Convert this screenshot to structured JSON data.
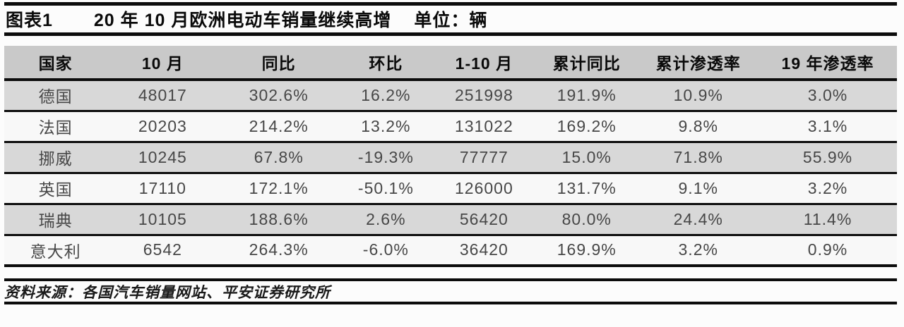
{
  "title": {
    "fig_label": "图表1",
    "text": "20 年 10 月欧洲电动车销量继续高增",
    "unit": "单位：辆"
  },
  "table": {
    "columns": [
      "国家",
      "10 月",
      "同比",
      "环比",
      "1-10 月",
      "累计同比",
      "累计渗透率",
      "19 年渗透率"
    ],
    "rows": [
      {
        "country": "德国",
        "values": [
          "48017",
          "302.6%",
          "16.2%",
          "251998",
          "191.9%",
          "10.9%",
          "3.0%"
        ]
      },
      {
        "country": "法国",
        "values": [
          "20203",
          "214.2%",
          "13.2%",
          "131022",
          "169.2%",
          "9.8%",
          "3.1%"
        ]
      },
      {
        "country": "挪威",
        "values": [
          "10245",
          "67.8%",
          "-19.3%",
          "77777",
          "15.0%",
          "71.8%",
          "55.9%"
        ]
      },
      {
        "country": "英国",
        "values": [
          "17110",
          "172.1%",
          "-50.1%",
          "126000",
          "131.7%",
          "9.1%",
          "3.2%"
        ]
      },
      {
        "country": "瑞典",
        "values": [
          "10105",
          "188.6%",
          "2.6%",
          "56420",
          "80.0%",
          "24.4%",
          "11.4%"
        ]
      },
      {
        "country": "意大利",
        "values": [
          "6542",
          "264.3%",
          "-6.0%",
          "36420",
          "169.9%",
          "3.2%",
          "0.9%"
        ]
      }
    ]
  },
  "footer": {
    "source": "资料来源：各国汽车销量网站、平安证券研究所"
  },
  "chart_data": {
    "type": "table",
    "title": "20 年 10 月欧洲电动车销量继续高增",
    "unit": "辆",
    "columns": [
      "国家",
      "10 月",
      "同比",
      "环比",
      "1-10 月",
      "累计同比",
      "累计渗透率",
      "19 年渗透率"
    ],
    "rows": [
      [
        "德国",
        48017,
        "302.6%",
        "16.2%",
        251998,
        "191.9%",
        "10.9%",
        "3.0%"
      ],
      [
        "法国",
        20203,
        "214.2%",
        "13.2%",
        131022,
        "169.2%",
        "9.8%",
        "3.1%"
      ],
      [
        "挪威",
        10245,
        "67.8%",
        "-19.3%",
        77777,
        "15.0%",
        "71.8%",
        "55.9%"
      ],
      [
        "英国",
        17110,
        "172.1%",
        "-50.1%",
        126000,
        "131.7%",
        "9.1%",
        "3.2%"
      ],
      [
        "瑞典",
        10105,
        "188.6%",
        "2.6%",
        56420,
        "80.0%",
        "24.4%",
        "11.4%"
      ],
      [
        "意大利",
        6542,
        "264.3%",
        "-6.0%",
        36420,
        "169.9%",
        "3.2%",
        "0.9%"
      ]
    ],
    "source": "各国汽车销量网站、平安证券研究所",
    "colors": {
      "header_bg": "#c9c9c9",
      "shaded_row_bg": "#d8d8d8",
      "plain_row_bg": "#f8f8f8",
      "rule": "#0c0c0c",
      "data_text": "#474747"
    }
  }
}
